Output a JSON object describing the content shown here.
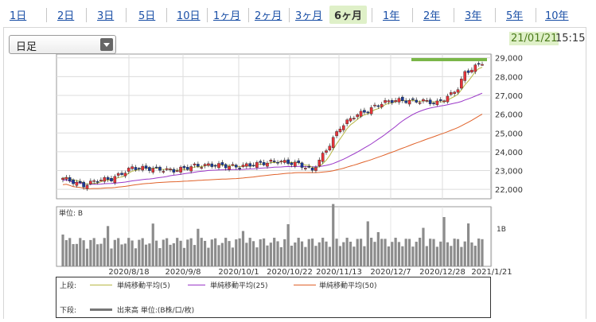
{
  "tabs": [
    {
      "label": "1日"
    },
    {
      "label": "2日"
    },
    {
      "label": "3日"
    },
    {
      "label": "5日"
    },
    {
      "label": "10日"
    },
    {
      "label": "1ヶ月"
    },
    {
      "label": "2ヶ月"
    },
    {
      "label": "3ヶ月"
    },
    {
      "label": "6ヶ月"
    },
    {
      "label": "1年"
    },
    {
      "label": "2年"
    },
    {
      "label": "3年"
    },
    {
      "label": "5年"
    },
    {
      "label": "10年"
    }
  ],
  "active_tab": "6ヶ月",
  "period_select": {
    "value": "日足"
  },
  "timestamp": {
    "date": "21/01/21",
    "time": "15:15"
  },
  "colors": {
    "accent": "#dff0c8",
    "up": "#e8333a",
    "down": "#1a3b9c",
    "ma5": "#b8b845",
    "ma25": "#9b38c8",
    "ma50": "#e0622a",
    "volume": "#8c8c8c",
    "highlight": "#7ab648"
  },
  "chart_data": [
    {
      "type": "candlestick",
      "ylim": [
        21500,
        29200
      ],
      "y_ticks": [
        "29,000",
        "28,000",
        "27,000",
        "26,000",
        "25,000",
        "24,000",
        "23,000",
        "22,000"
      ],
      "x_ticks": [
        "2020/8/18",
        "2020/9/8",
        "2020/10/1",
        "2020/10/22",
        "2020/11/13",
        "2020/12/7",
        "2020/12/28",
        "2021/1/21"
      ],
      "close_start": 22600,
      "close_end": 28760,
      "series": [
        {
          "name": "単純移動平均(5)",
          "key": "ma5"
        },
        {
          "name": "単純移動平均(25)",
          "key": "ma25"
        },
        {
          "name": "単純移動平均(50)",
          "key": "ma50"
        }
      ]
    },
    {
      "type": "bar",
      "unit_label": "単位: B",
      "y_tick": "1B",
      "legend": "出来高 単位:(B株/口/枚)"
    }
  ],
  "legend": {
    "upper_label": "上段:",
    "lower_label": "下段:",
    "ma5": "単純移動平均(5)",
    "ma25": "単純移動平均(25)",
    "ma50": "単純移動平均(50)",
    "volume": "出来高 単位:(B株/口/枚)"
  }
}
